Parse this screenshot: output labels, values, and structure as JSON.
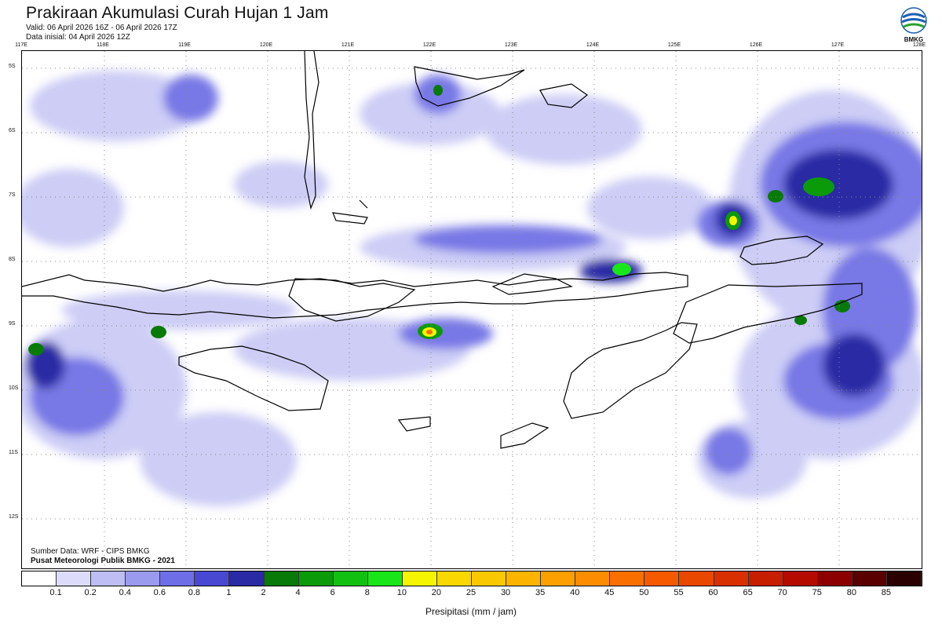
{
  "header": {
    "title": "Prakiraan Akumulasi Curah Hujan 1 Jam",
    "valid": "Valid: 06 April 2026 16Z - 06 April 2026 17Z",
    "init": "Data inisial: 04 April 2026 12Z"
  },
  "logo": {
    "text": "BMKG"
  },
  "axes": {
    "lon": [
      "117E",
      "118E",
      "119E",
      "120E",
      "121E",
      "122E",
      "123E",
      "124E",
      "125E",
      "126E",
      "127E",
      "128E"
    ],
    "lat": [
      "5S",
      "6S",
      "7S",
      "8S",
      "9S",
      "10S",
      "11S",
      "12S"
    ]
  },
  "footer": {
    "source": "Sumber Data: WRF - CIPS BMKG",
    "credit": "Pusat Meteorologi Publik BMKG - 2021"
  },
  "legend": {
    "unit": "Presipitasi (mm / jam)",
    "labels": [
      "0.1",
      "0.2",
      "0.4",
      "0.6",
      "0.8",
      "1",
      "2",
      "4",
      "6",
      "8",
      "10",
      "20",
      "25",
      "30",
      "35",
      "40",
      "45",
      "50",
      "55",
      "60",
      "65",
      "70",
      "75",
      "80",
      "85"
    ],
    "colors": [
      "#ffffff",
      "#dcdcfa",
      "#bebef5",
      "#9a9aef",
      "#6e6ee6",
      "#4848d2",
      "#2a2aa5",
      "#087a08",
      "#0a9a0a",
      "#12c012",
      "#19e619",
      "#f5f500",
      "#f8d800",
      "#fac800",
      "#fbb400",
      "#fca000",
      "#fc8c00",
      "#fa7000",
      "#f55a00",
      "#e84800",
      "#d83000",
      "#c81e00",
      "#b40a00",
      "#8c0000",
      "#5a0000",
      "#2a0000"
    ]
  }
}
